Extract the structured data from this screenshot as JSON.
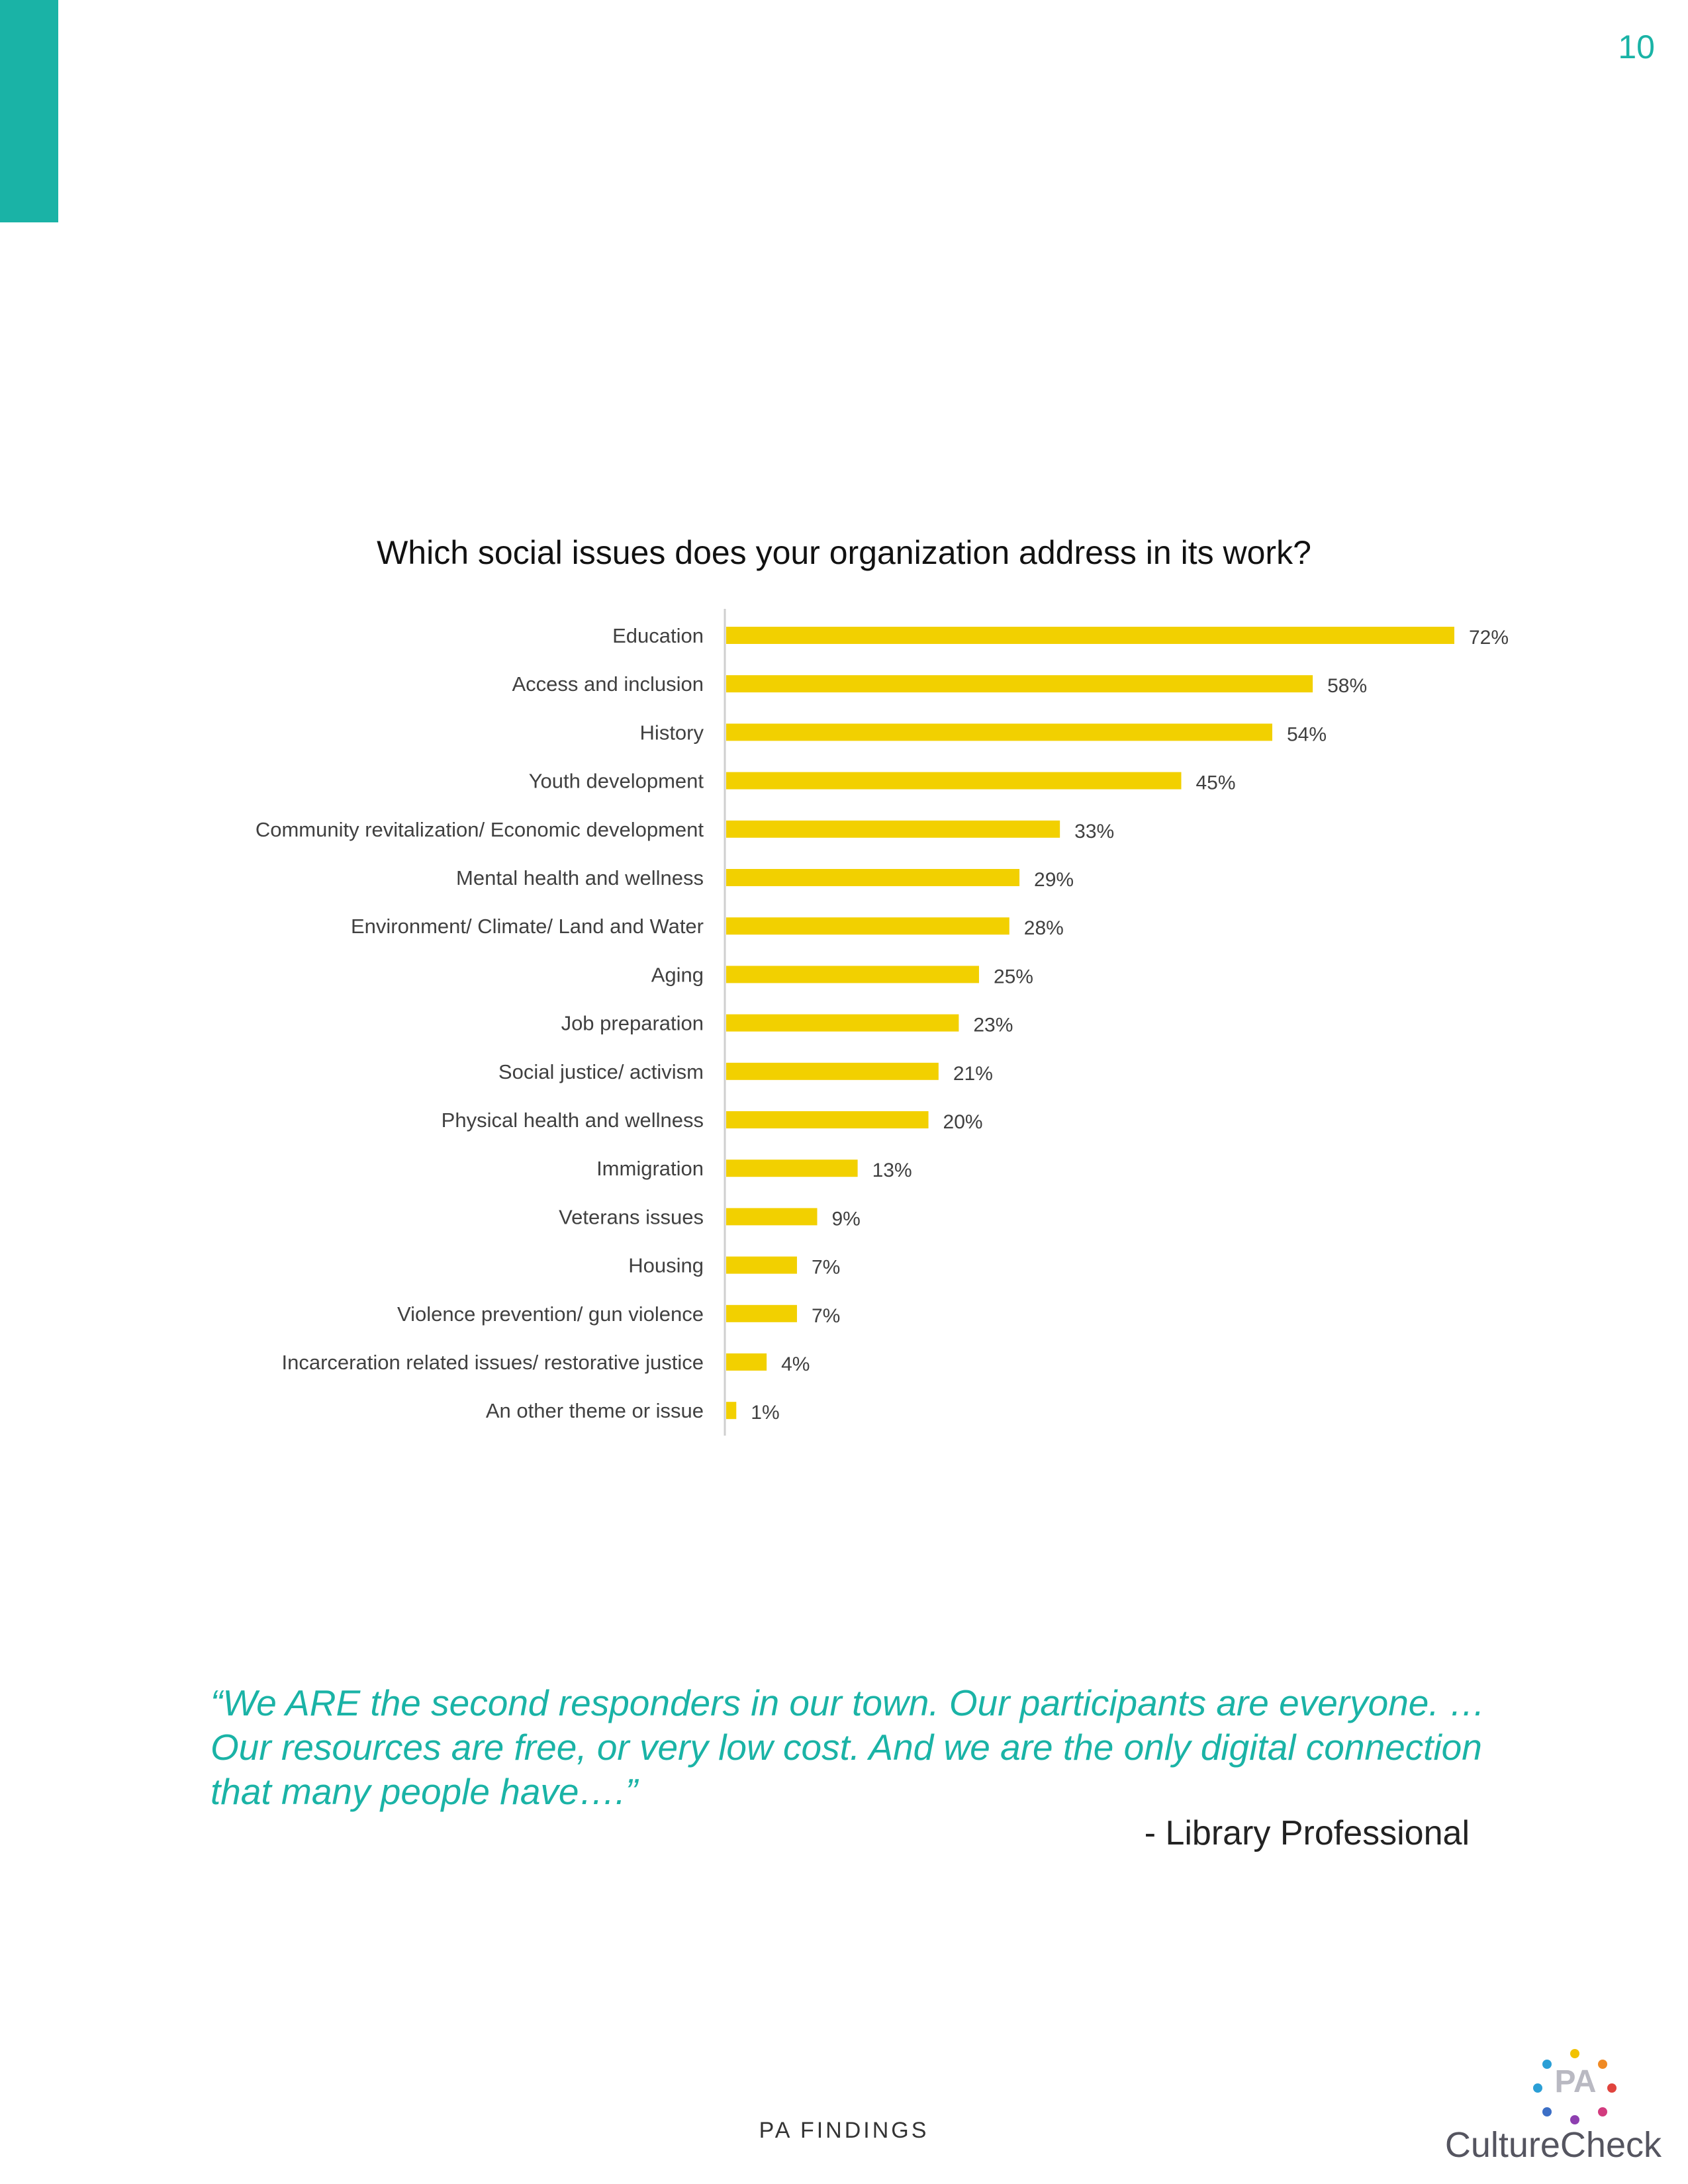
{
  "page": {
    "number": "10",
    "section_label": "PA FINDINGS"
  },
  "colors": {
    "accent": "#1ab3a6",
    "bar": "#f2d000",
    "text": "#404040"
  },
  "chart_data": {
    "type": "bar",
    "orientation": "horizontal",
    "title": "Which social issues does your organization address in its work?",
    "categories": [
      "Education",
      "Access and inclusion",
      "History",
      "Youth development",
      "Community revitalization/ Economic development",
      "Mental health and wellness",
      "Environment/ Climate/ Land and Water",
      "Aging",
      "Job preparation",
      "Social justice/ activism",
      "Physical health and wellness",
      "Immigration",
      "Veterans issues",
      "Housing",
      "Violence prevention/ gun violence",
      "Incarceration related issues/ restorative justice",
      "An other theme or issue"
    ],
    "values": [
      72,
      58,
      54,
      45,
      33,
      29,
      28,
      25,
      23,
      21,
      20,
      13,
      9,
      7,
      7,
      4,
      1
    ],
    "value_labels": [
      "72%",
      "58%",
      "54%",
      "45%",
      "33%",
      "29%",
      "28%",
      "25%",
      "23%",
      "21%",
      "20%",
      "13%",
      "9%",
      "7%",
      "7%",
      "4%",
      "1%"
    ],
    "unit": "%",
    "xlim": [
      0,
      72
    ],
    "grid": false,
    "legend": "none"
  },
  "quote": {
    "text": "“We ARE the second responders in our town.  Our participants are everyone.  …Our resources are free, or very low cost.   And we are the only digital connection that many people have….”",
    "attribution": "- Library Professional"
  },
  "logo": {
    "mark_text": "PA",
    "name": "CultureCheck"
  },
  "icons": {
    "logo_dots": "colored-dots-ring"
  }
}
